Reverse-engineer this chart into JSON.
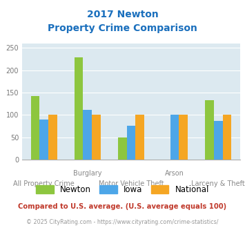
{
  "title_line1": "2017 Newton",
  "title_line2": "Property Crime Comparison",
  "title_color": "#1a6fbd",
  "categories": [
    "All Property Crime",
    "Burglary",
    "Motor Vehicle Theft",
    "Arson",
    "Larceny & Theft"
  ],
  "x_labels_top": [
    "",
    "Burglary",
    "",
    "Arson",
    ""
  ],
  "x_labels_bottom": [
    "All Property Crime",
    "",
    "Motor Vehicle Theft",
    "",
    "Larceny & Theft"
  ],
  "newton": [
    142,
    228,
    50,
    0,
    133
  ],
  "iowa": [
    90,
    112,
    75,
    100,
    86
  ],
  "national": [
    100,
    100,
    100,
    100,
    100
  ],
  "newton_color": "#8dc63f",
  "iowa_color": "#4da6e8",
  "national_color": "#f5a623",
  "ylim": [
    0,
    260
  ],
  "yticks": [
    0,
    50,
    100,
    150,
    200,
    250
  ],
  "background_color": "#dce9f0",
  "footer_text": "Compared to U.S. average. (U.S. average equals 100)",
  "copyright_text": "© 2025 CityRating.com - https://www.cityrating.com/crime-statistics/",
  "footer_color": "#c0392b",
  "copyright_color": "#999999",
  "legend_labels": [
    "Newton",
    "Iowa",
    "National"
  ]
}
